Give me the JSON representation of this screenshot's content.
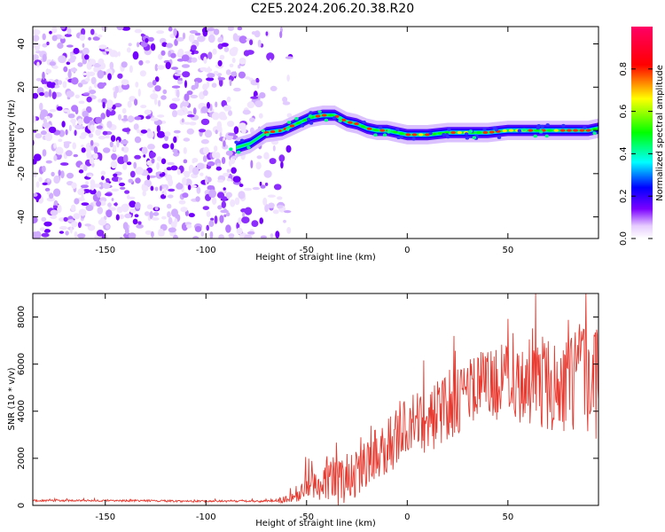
{
  "title": "C2E5.2024.206.20.38.R20",
  "chart_data": [
    {
      "type": "heatmap",
      "xlabel": "Height of straight line (km)",
      "ylabel": "Frequency (Hz)",
      "xlim": [
        -186,
        95
      ],
      "ylim": [
        -50,
        48
      ],
      "x_ticks": [
        -150,
        -100,
        -50,
        0,
        50
      ],
      "y_ticks": [
        -40,
        -20,
        0,
        20,
        40
      ],
      "colorbar": {
        "label": "Normalized spectral amplitude",
        "range": [
          0,
          1
        ],
        "ticks": [
          "0.0",
          "0.2",
          "0.4",
          "0.6",
          "0.8"
        ]
      },
      "noise_region": {
        "x": [
          -186,
          -58
        ],
        "y": [
          -50,
          48
        ]
      },
      "signal_ridge": {
        "x": [
          -85,
          -78,
          -70,
          -62,
          -55,
          -48,
          -42,
          -36,
          -30,
          -25,
          -20,
          -15,
          -10,
          -5,
          0,
          10,
          20,
          30,
          40,
          50,
          60,
          70,
          80,
          90,
          95
        ],
        "y": [
          -8,
          -6,
          -1,
          0,
          3,
          6,
          7,
          7,
          4,
          3,
          1,
          0,
          0,
          -1,
          -2,
          -2,
          -1,
          -1,
          -1,
          0,
          0,
          0,
          0,
          0,
          1
        ]
      },
      "grid": false
    },
    {
      "type": "line",
      "xlabel": "Height of straight line (km)",
      "ylabel": "SNR (10 * v/v)",
      "xlim": [
        -186,
        95
      ],
      "ylim": [
        0,
        9000
      ],
      "x_ticks": [
        -150,
        -100,
        -50,
        0,
        50
      ],
      "y_ticks": [
        0,
        2000,
        4000,
        6000,
        8000
      ],
      "series": [
        {
          "color": "#e8392f",
          "x": [
            -186,
            -170,
            -150,
            -130,
            -110,
            -90,
            -70,
            -60,
            -55,
            -50,
            -45,
            -40,
            -35,
            -30,
            -25,
            -20,
            -10,
            0,
            10,
            20,
            30,
            40,
            50,
            60,
            70,
            80,
            85,
            90,
            95
          ],
          "y": [
            200,
            200,
            200,
            200,
            180,
            180,
            180,
            250,
            400,
            800,
            900,
            1200,
            900,
            1200,
            1500,
            2000,
            2500,
            3300,
            3600,
            4200,
            4800,
            5200,
            5200,
            5300,
            5200,
            5000,
            5200,
            5300,
            5100
          ],
          "spread": [
            40,
            40,
            40,
            40,
            40,
            40,
            40,
            150,
            300,
            600,
            700,
            900,
            1000,
            1100,
            1200,
            1200,
            1300,
            1300,
            1400,
            1500,
            1500,
            1600,
            1700,
            1800,
            2000,
            2200,
            2500,
            2500,
            2300
          ]
        }
      ],
      "grid": false
    }
  ]
}
